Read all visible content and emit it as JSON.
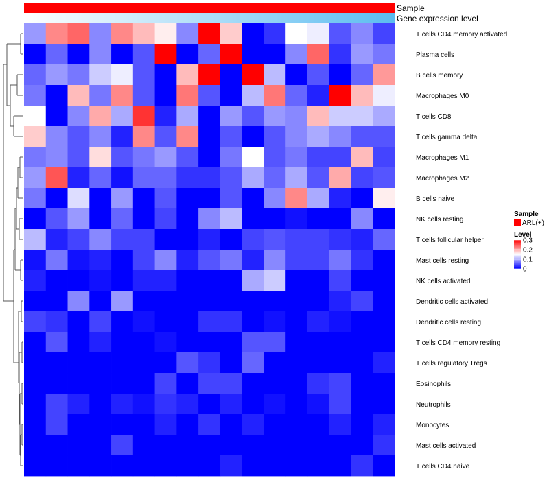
{
  "chart_data": {
    "type": "heatmap",
    "annotation_rows": [
      {
        "name": "Sample",
        "color": "#ff0000"
      },
      {
        "name": "Gene expression level",
        "gradient_from": "#ffffff",
        "gradient_to": "#5bbcf0"
      }
    ],
    "rows": [
      "T cells CD4 memory activated",
      "Plasma cells",
      "B cells memory",
      "Macrophages M0",
      "T cells CD8",
      "T cells gamma delta",
      "Macrophages M1",
      "Macrophages M2",
      "B cells naive",
      "NK cells resting",
      "T cells follicular helper",
      "Mast cells resting",
      "NK cells activated",
      "Dendritic cells activated",
      "Dendritic cells resting",
      "T cells CD4 memory resting",
      "T cells regulatory  Tregs",
      "Eosinophils",
      "Neutrophils",
      "Monocytes",
      "Mast cells activated",
      "T cells CD4 naive"
    ],
    "n_columns": 17,
    "values": [
      [
        0.09,
        0.22,
        0.24,
        0.08,
        0.22,
        0.19,
        0.16,
        0.08,
        0.3,
        0.18,
        0.0,
        0.03,
        0.15,
        0.14,
        0.05,
        0.08,
        0.04
      ],
      [
        0.0,
        0.06,
        0.0,
        0.08,
        0.0,
        0.05,
        0.3,
        0.0,
        0.06,
        0.3,
        0.0,
        0.0,
        0.08,
        0.24,
        0.03,
        0.09,
        0.07
      ],
      [
        0.06,
        0.09,
        0.07,
        0.12,
        0.14,
        0.05,
        0.0,
        0.19,
        0.3,
        0.0,
        0.3,
        0.11,
        0.0,
        0.05,
        0.0,
        0.06,
        0.21
      ],
      [
        0.07,
        0.0,
        0.19,
        0.07,
        0.22,
        0.05,
        0.0,
        0.23,
        0.05,
        0.0,
        0.11,
        0.23,
        0.06,
        0.02,
        0.3,
        0.19,
        0.14
      ],
      [
        0.15,
        0.0,
        0.08,
        0.2,
        0.1,
        0.27,
        0.02,
        0.1,
        0.0,
        0.09,
        0.05,
        0.09,
        0.08,
        0.19,
        0.12,
        0.12,
        0.1
      ],
      [
        0.18,
        0.08,
        0.05,
        0.08,
        0.02,
        0.22,
        0.05,
        0.22,
        0.0,
        0.05,
        0.0,
        0.05,
        0.08,
        0.1,
        0.08,
        0.05,
        0.05
      ],
      [
        0.07,
        0.08,
        0.05,
        0.17,
        0.05,
        0.07,
        0.09,
        0.05,
        0.0,
        0.07,
        0.15,
        0.05,
        0.07,
        0.04,
        0.04,
        0.19,
        0.04
      ],
      [
        0.09,
        0.25,
        0.02,
        0.06,
        0.01,
        0.06,
        0.06,
        0.03,
        0.03,
        0.05,
        0.1,
        0.06,
        0.1,
        0.05,
        0.2,
        0.04,
        0.05
      ],
      [
        0.07,
        0.0,
        0.13,
        0.0,
        0.09,
        0.0,
        0.05,
        0.0,
        0.0,
        0.05,
        0.0,
        0.08,
        0.22,
        0.1,
        0.02,
        0.0,
        0.16
      ],
      [
        0.0,
        0.05,
        0.09,
        0.0,
        0.06,
        0.0,
        0.04,
        0.0,
        0.08,
        0.11,
        0.0,
        0.0,
        0.01,
        0.0,
        0.0,
        0.08,
        0.0
      ],
      [
        0.11,
        0.02,
        0.04,
        0.08,
        0.04,
        0.04,
        0.0,
        0.0,
        0.02,
        0.0,
        0.04,
        0.05,
        0.04,
        0.04,
        0.03,
        0.02,
        0.06
      ],
      [
        0.01,
        0.07,
        0.01,
        0.02,
        0.0,
        0.04,
        0.08,
        0.02,
        0.05,
        0.07,
        0.02,
        0.08,
        0.04,
        0.04,
        0.07,
        0.03,
        0.0
      ],
      [
        0.02,
        0.0,
        0.0,
        0.01,
        0.0,
        0.02,
        0.02,
        0.0,
        0.0,
        0.0,
        0.1,
        0.12,
        0.0,
        0.0,
        0.04,
        0.0,
        0.0
      ],
      [
        0.0,
        0.0,
        0.08,
        0.0,
        0.09,
        0.0,
        0.0,
        0.0,
        0.0,
        0.0,
        0.0,
        0.0,
        0.0,
        0.0,
        0.02,
        0.04,
        0.0
      ],
      [
        0.04,
        0.03,
        0.0,
        0.04,
        0.0,
        0.01,
        0.0,
        0.0,
        0.03,
        0.03,
        0.0,
        0.01,
        0.0,
        0.02,
        0.01,
        0.0,
        0.0
      ],
      [
        0.0,
        0.05,
        0.0,
        0.02,
        0.0,
        0.0,
        0.01,
        0.0,
        0.0,
        0.0,
        0.05,
        0.05,
        0.0,
        0.0,
        0.0,
        0.0,
        0.0
      ],
      [
        0.0,
        0.0,
        0.0,
        0.0,
        0.0,
        0.0,
        0.0,
        0.05,
        0.03,
        0.0,
        0.06,
        0.0,
        0.0,
        0.0,
        0.0,
        0.0,
        0.02
      ],
      [
        0.0,
        0.0,
        0.0,
        0.0,
        0.0,
        0.0,
        0.04,
        0.0,
        0.04,
        0.04,
        0.0,
        0.0,
        0.0,
        0.03,
        0.04,
        0.0,
        0.0
      ],
      [
        0.0,
        0.04,
        0.02,
        0.0,
        0.02,
        0.01,
        0.03,
        0.02,
        0.0,
        0.02,
        0.0,
        0.01,
        0.0,
        0.01,
        0.04,
        0.0,
        0.0
      ],
      [
        0.0,
        0.04,
        0.0,
        0.0,
        0.0,
        0.0,
        0.02,
        0.0,
        0.03,
        0.0,
        0.02,
        0.0,
        0.0,
        0.0,
        0.02,
        0.0,
        0.02
      ],
      [
        0.0,
        0.0,
        0.0,
        0.0,
        0.04,
        0.0,
        0.0,
        0.0,
        0.0,
        0.0,
        0.0,
        0.0,
        0.0,
        0.0,
        0.0,
        0.0,
        0.03
      ],
      [
        0.0,
        0.0,
        0.0,
        0.0,
        0.0,
        0.0,
        0.0,
        0.0,
        0.0,
        0.02,
        0.0,
        0.0,
        0.0,
        0.0,
        0.0,
        0.03,
        0.0
      ]
    ],
    "color_scale": {
      "min": 0,
      "max": 0.3,
      "low_color": "#0000ff",
      "mid_color": "#ffffff",
      "high_color": "#ff0000"
    },
    "legend": {
      "sample_title": "Sample",
      "sample_entry": "ARL(+)",
      "sample_color": "#ff0000",
      "level_title": "Level",
      "ticks": [
        {
          "value": 0.3,
          "label": "0.3"
        },
        {
          "value": 0.2,
          "label": "0.2"
        },
        {
          "value": 0.1,
          "label": "0.1"
        },
        {
          "value": 0,
          "label": "0"
        }
      ],
      "placement": "right"
    },
    "dendrogram": "rows"
  }
}
